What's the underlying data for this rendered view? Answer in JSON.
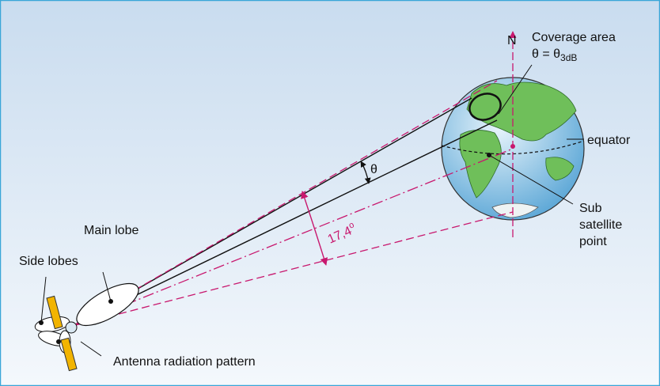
{
  "labels": {
    "north": "N",
    "coverage_area": "Coverage area",
    "coverage_formula": {
      "main": "θ = θ",
      "sub": "3dB"
    },
    "equator": "equator",
    "theta": "θ",
    "angle": {
      "main": "17,4",
      "sup": "o"
    },
    "main_lobe": "Main lobe",
    "side_lobes": "Side lobes",
    "sub_satellite_point": [
      "Sub",
      "satellite",
      "point"
    ],
    "antenna_pattern": "Antenna radiation pattern"
  }
}
